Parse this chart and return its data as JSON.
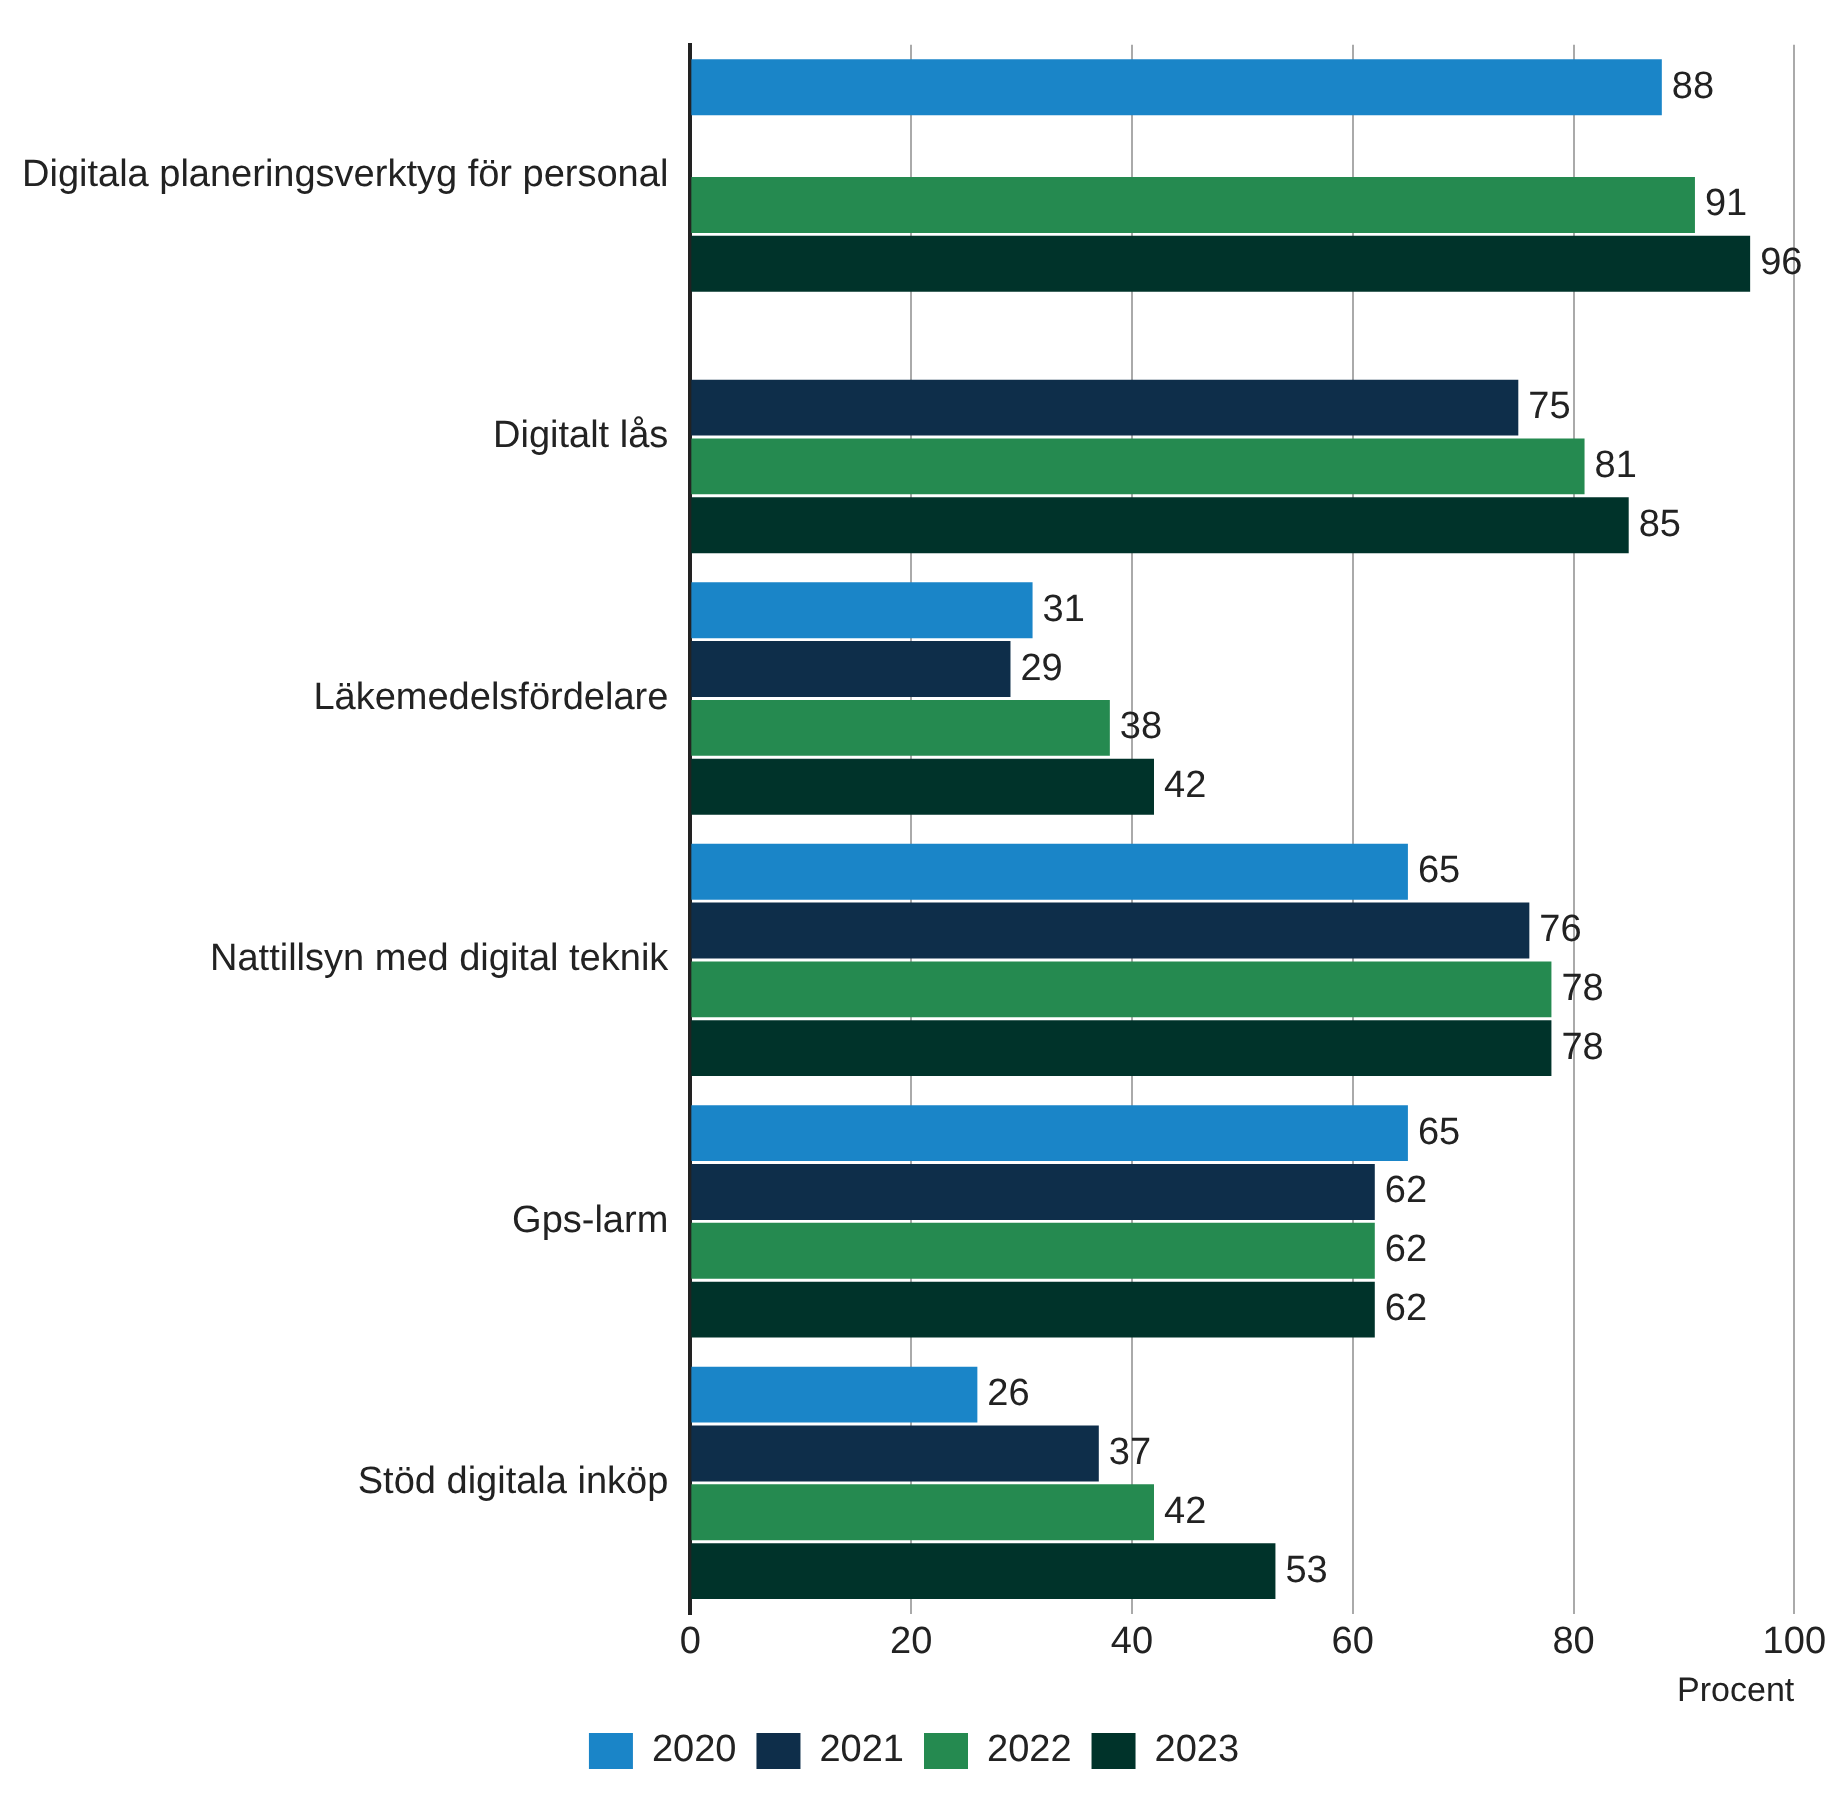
{
  "chart_data": {
    "type": "bar",
    "orientation": "horizontal",
    "categories": [
      "Digitala planeringsverktyg för personal",
      "Digitalt lås",
      "Läkemedelsfördelare",
      "Nattillsyn med digital teknik",
      "Gps-larm",
      "Stöd digitala inköp"
    ],
    "series": [
      {
        "name": "2020",
        "color": "#1a85c8",
        "values": [
          88,
          null,
          31,
          65,
          65,
          26
        ]
      },
      {
        "name": "2021",
        "color": "#0e2e4a",
        "values": [
          null,
          75,
          29,
          76,
          62,
          37
        ]
      },
      {
        "name": "2022",
        "color": "#258a50",
        "values": [
          91,
          81,
          38,
          78,
          62,
          42
        ]
      },
      {
        "name": "2023",
        "color": "#00332a",
        "values": [
          96,
          85,
          42,
          78,
          62,
          53
        ]
      }
    ],
    "xlabel": "Procent",
    "xlim": [
      0,
      100
    ],
    "xticks": [
      0,
      20,
      40,
      60,
      80,
      100
    ],
    "grid": "x",
    "legend": "bottom",
    "data_labels": true
  }
}
